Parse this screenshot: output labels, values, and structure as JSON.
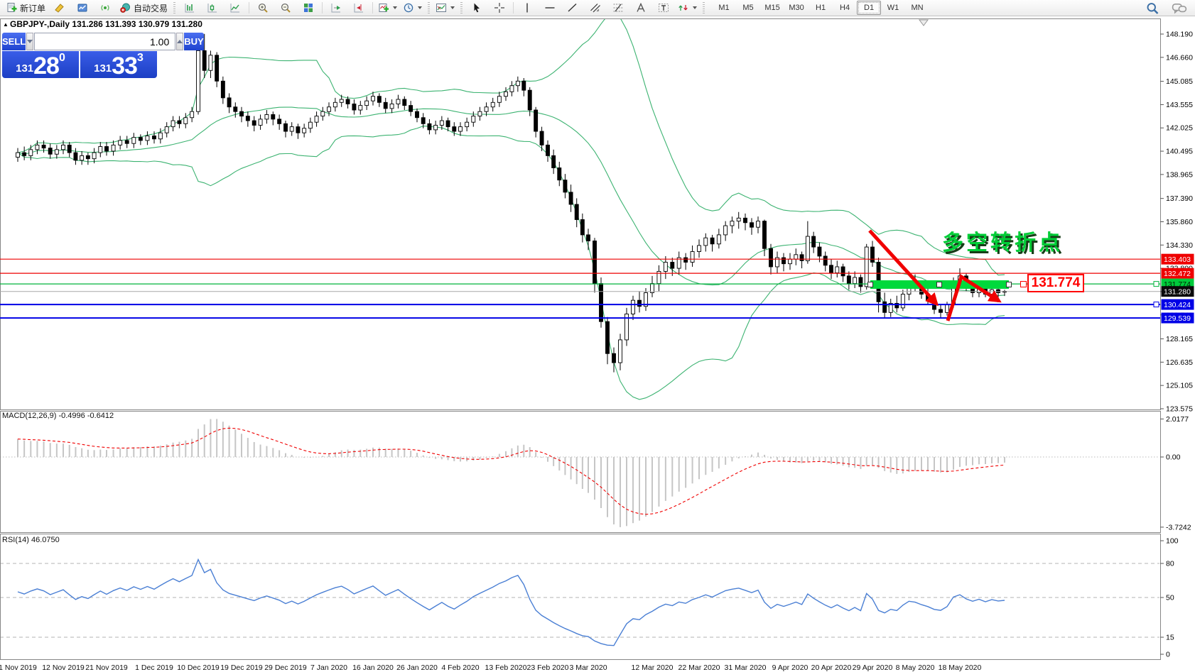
{
  "toolbar": {
    "new_order_label": "新订单",
    "autotrading_label": "自动交易",
    "timeframes": [
      "M1",
      "M5",
      "M15",
      "M30",
      "H1",
      "H4",
      "D1",
      "W1",
      "MN"
    ],
    "active_timeframe": "D1"
  },
  "icons": {
    "new_order": "document-plus",
    "profile": "yellow-marker",
    "market_window": "blue-window",
    "signal": "signal-waves",
    "autotrading": "robot-stop",
    "bar_chart": "ohlc-bars",
    "candle_chart": "candlestick",
    "line_chart": "line",
    "zoom_in": "magnifier-plus",
    "zoom_out": "magnifier-minus",
    "tile_windows": "tiled-squares",
    "shift_end": "axis-green-arrow",
    "auto_shift": "axis-red-arrow",
    "add_indicator": "chart-plus",
    "period": "clock",
    "new_chart": "chart-frame",
    "cursor": "arrow-pointer",
    "crosshair": "crosshair",
    "vline": "vertical-line",
    "hline": "horizontal-line",
    "trendline": "diagonal-line",
    "channel": "equidistant-channel",
    "fibonacci": "fibo-retracement",
    "text": "letter-A",
    "text_label": "label-T",
    "arrows_tool": "arrow-objects",
    "search": "magnifier",
    "chat": "speech-bubbles",
    "collapse": "black-triangle-up"
  },
  "chart": {
    "symbol_title": "GBPJPY-,Daily",
    "ohlc_text": "131.286 131.393 130.979 131.280"
  },
  "one_click": {
    "sell_label": "SELL",
    "buy_label": "BUY",
    "volume": "1.00",
    "sell_price": {
      "base": "131",
      "big": "28",
      "sup": "0"
    },
    "buy_price": {
      "base": "131",
      "big": "33",
      "sup": "3"
    }
  },
  "annotations": {
    "turning_point_text": "多空转折点",
    "level_box_label": "131.774"
  },
  "panes": {
    "macd_label": "MACD(12,26,9) -0.4996 -0.6412",
    "rsi_label": "RSI(14) 46.0750"
  },
  "axis": {
    "price_ticks": [
      "148.190",
      "146.660",
      "145.085",
      "143.555",
      "142.025",
      "140.495",
      "138.965",
      "137.390",
      "135.860",
      "134.330",
      "132.800",
      "131.270",
      "129.740",
      "128.165",
      "126.635",
      "125.105",
      "123.575"
    ],
    "badges": [
      {
        "label": "133.403",
        "bg": "#ee0000",
        "fg": "#ffffff"
      },
      {
        "label": "132.472",
        "bg": "#ee0000",
        "fg": "#ffffff"
      },
      {
        "label": "131.774",
        "bg": "#00cb3c",
        "fg": "#002200"
      },
      {
        "label": "131.280",
        "bg": "#0a0a0a",
        "fg": "#ffffff"
      },
      {
        "label": "130.424",
        "bg": "#0000e6",
        "fg": "#ffffff"
      },
      {
        "label": "129.539",
        "bg": "#0000e6",
        "fg": "#ffffff"
      }
    ],
    "macd_ticks": [
      "2.0177",
      "0.00",
      "-3.7242"
    ],
    "rsi_ticks": [
      "100",
      "80",
      "50",
      "15",
      "0"
    ],
    "dates": [
      "1 Nov 2019",
      "12 Nov 2019",
      "21 Nov 2019",
      "1 Dec 2019",
      "10 Dec 2019",
      "19 Dec 2019",
      "29 Dec 2019",
      "7 Jan 2020",
      "16 Jan 2020",
      "26 Jan 2020",
      "4 Feb 2020",
      "13 Feb 2020",
      "23 Feb 2020",
      "3 Mar 2020",
      "12 Mar 2020",
      "22 Mar 2020",
      "31 Mar 2020",
      "9 Apr 2020",
      "20 Apr 2020",
      "29 Apr 2020",
      "8 May 2020",
      "18 May 2020"
    ]
  },
  "chart_data": {
    "type": "candlestick",
    "symbol": "GBPJPY",
    "period": "Daily",
    "price_range": [
      123.575,
      148.19
    ],
    "ohlc": [
      [
        140.1,
        140.7,
        139.8,
        140.4
      ],
      [
        140.4,
        140.8,
        139.9,
        140.2
      ],
      [
        140.2,
        140.9,
        139.9,
        140.6
      ],
      [
        140.6,
        141.2,
        140.3,
        140.9
      ],
      [
        140.9,
        141.2,
        140.4,
        140.7
      ],
      [
        140.7,
        141.0,
        140.0,
        140.3
      ],
      [
        140.3,
        140.9,
        140.0,
        140.6
      ],
      [
        140.6,
        141.2,
        140.3,
        140.9
      ],
      [
        140.9,
        141.1,
        140.1,
        140.4
      ],
      [
        140.4,
        140.7,
        139.6,
        139.9
      ],
      [
        139.9,
        140.5,
        139.6,
        140.2
      ],
      [
        140.2,
        140.4,
        139.6,
        140.0
      ],
      [
        140.0,
        140.7,
        139.7,
        140.4
      ],
      [
        140.4,
        141.1,
        140.1,
        140.8
      ],
      [
        140.8,
        141.1,
        140.2,
        140.5
      ],
      [
        140.5,
        141.2,
        140.2,
        140.9
      ],
      [
        140.9,
        141.5,
        140.6,
        141.2
      ],
      [
        141.2,
        141.5,
        140.7,
        141.0
      ],
      [
        141.0,
        141.7,
        140.7,
        141.4
      ],
      [
        141.4,
        141.6,
        140.9,
        141.2
      ],
      [
        141.2,
        141.8,
        140.9,
        141.5
      ],
      [
        141.5,
        141.8,
        141.0,
        141.3
      ],
      [
        141.3,
        142.0,
        141.0,
        141.7
      ],
      [
        141.7,
        142.4,
        141.4,
        142.1
      ],
      [
        142.1,
        142.8,
        141.8,
        142.5
      ],
      [
        142.5,
        142.8,
        142.0,
        142.3
      ],
      [
        142.3,
        143.0,
        142.0,
        142.7
      ],
      [
        142.7,
        143.4,
        142.4,
        143.1
      ],
      [
        143.1,
        147.4,
        142.9,
        147.1
      ],
      [
        147.1,
        148.2,
        145.3,
        145.8
      ],
      [
        145.8,
        147.1,
        145.3,
        146.8
      ],
      [
        146.8,
        147.0,
        144.7,
        145.1
      ],
      [
        145.1,
        145.4,
        143.6,
        144.0
      ],
      [
        144.0,
        144.3,
        143.0,
        143.4
      ],
      [
        143.4,
        143.7,
        142.7,
        143.1
      ],
      [
        143.1,
        143.4,
        142.4,
        142.8
      ],
      [
        142.8,
        143.1,
        142.1,
        142.5
      ],
      [
        142.5,
        142.8,
        141.8,
        142.2
      ],
      [
        142.2,
        142.9,
        141.9,
        142.6
      ],
      [
        142.6,
        143.2,
        142.3,
        142.9
      ],
      [
        142.9,
        143.1,
        142.2,
        142.6
      ],
      [
        142.6,
        142.9,
        141.9,
        142.3
      ],
      [
        142.3,
        142.5,
        141.4,
        141.8
      ],
      [
        141.8,
        142.4,
        141.5,
        142.1
      ],
      [
        142.1,
        142.3,
        141.3,
        141.7
      ],
      [
        141.7,
        142.3,
        141.4,
        142.0
      ],
      [
        142.0,
        142.7,
        141.7,
        142.4
      ],
      [
        142.4,
        143.1,
        142.1,
        142.8
      ],
      [
        142.8,
        143.4,
        142.5,
        143.1
      ],
      [
        143.1,
        143.7,
        142.8,
        143.4
      ],
      [
        143.4,
        144.0,
        143.1,
        143.7
      ],
      [
        143.7,
        144.2,
        143.4,
        143.9
      ],
      [
        143.9,
        144.1,
        143.3,
        143.6
      ],
      [
        143.6,
        143.9,
        142.9,
        143.2
      ],
      [
        143.2,
        143.8,
        142.9,
        143.5
      ],
      [
        143.5,
        144.1,
        143.2,
        143.8
      ],
      [
        143.8,
        144.4,
        143.5,
        144.1
      ],
      [
        144.1,
        144.3,
        143.4,
        143.7
      ],
      [
        143.7,
        144.0,
        143.0,
        143.3
      ],
      [
        143.3,
        143.9,
        143.0,
        143.6
      ],
      [
        143.6,
        144.2,
        143.3,
        143.9
      ],
      [
        143.9,
        144.1,
        143.2,
        143.5
      ],
      [
        143.5,
        143.8,
        142.8,
        143.1
      ],
      [
        143.1,
        143.3,
        142.4,
        142.7
      ],
      [
        142.7,
        143.0,
        142.0,
        142.3
      ],
      [
        142.3,
        142.6,
        141.6,
        141.9
      ],
      [
        141.9,
        142.5,
        141.6,
        142.2
      ],
      [
        142.2,
        142.8,
        141.9,
        142.5
      ],
      [
        142.5,
        142.7,
        141.8,
        142.1
      ],
      [
        142.1,
        142.4,
        141.5,
        141.8
      ],
      [
        141.8,
        142.4,
        141.5,
        142.1
      ],
      [
        142.1,
        142.7,
        141.8,
        142.4
      ],
      [
        142.4,
        143.1,
        142.1,
        142.8
      ],
      [
        142.8,
        143.4,
        142.5,
        143.1
      ],
      [
        143.1,
        143.7,
        142.8,
        143.4
      ],
      [
        143.4,
        144.0,
        143.1,
        143.7
      ],
      [
        143.7,
        144.4,
        143.4,
        144.1
      ],
      [
        144.1,
        144.7,
        143.8,
        144.4
      ],
      [
        144.4,
        145.1,
        144.1,
        144.8
      ],
      [
        144.8,
        145.4,
        144.4,
        145.1
      ],
      [
        145.1,
        145.3,
        144.1,
        144.5
      ],
      [
        144.5,
        144.7,
        142.8,
        143.2
      ],
      [
        143.2,
        143.4,
        141.4,
        141.8
      ],
      [
        141.8,
        142.1,
        140.5,
        140.9
      ],
      [
        140.9,
        141.2,
        139.8,
        140.2
      ],
      [
        140.2,
        140.6,
        139.0,
        139.4
      ],
      [
        139.4,
        139.8,
        138.2,
        138.6
      ],
      [
        138.6,
        139.0,
        137.4,
        137.8
      ],
      [
        137.8,
        138.3,
        136.5,
        137.0
      ],
      [
        137.0,
        137.4,
        135.5,
        136.0
      ],
      [
        136.0,
        136.4,
        134.5,
        135.0
      ],
      [
        135.0,
        135.4,
        134.0,
        134.6
      ],
      [
        134.6,
        134.8,
        131.2,
        131.8
      ],
      [
        131.8,
        132.2,
        128.9,
        129.3
      ],
      [
        129.3,
        129.6,
        126.5,
        127.2
      ],
      [
        127.2,
        127.6,
        125.97,
        126.6
      ],
      [
        126.6,
        128.5,
        126.1,
        128.1
      ],
      [
        128.1,
        130.2,
        127.7,
        129.8
      ],
      [
        129.8,
        131.0,
        129.4,
        130.7
      ],
      [
        130.7,
        131.3,
        129.9,
        130.3
      ],
      [
        130.3,
        131.5,
        130.0,
        131.2
      ],
      [
        131.2,
        132.3,
        130.9,
        131.8
      ],
      [
        131.8,
        133.0,
        131.3,
        132.6
      ],
      [
        132.6,
        133.6,
        132.1,
        133.2
      ],
      [
        133.2,
        133.5,
        132.3,
        132.8
      ],
      [
        132.8,
        133.9,
        132.4,
        133.5
      ],
      [
        133.5,
        133.8,
        132.7,
        133.2
      ],
      [
        133.2,
        134.3,
        132.9,
        133.9
      ],
      [
        133.9,
        134.7,
        133.5,
        134.3
      ],
      [
        134.3,
        135.1,
        133.9,
        134.8
      ],
      [
        134.8,
        135.0,
        133.9,
        134.4
      ],
      [
        134.4,
        135.4,
        134.1,
        135.0
      ],
      [
        135.0,
        135.9,
        134.6,
        135.6
      ],
      [
        135.6,
        136.2,
        135.1,
        135.9
      ],
      [
        135.9,
        136.5,
        135.4,
        136.1
      ],
      [
        136.1,
        136.4,
        135.3,
        135.8
      ],
      [
        135.8,
        136.1,
        135.0,
        135.5
      ],
      [
        135.5,
        136.2,
        135.1,
        135.9
      ],
      [
        135.9,
        136.0,
        133.6,
        134.1
      ],
      [
        134.1,
        134.4,
        132.4,
        132.9
      ],
      [
        132.9,
        133.9,
        132.5,
        133.5
      ],
      [
        133.5,
        133.8,
        132.6,
        133.1
      ],
      [
        133.1,
        133.8,
        132.7,
        133.4
      ],
      [
        133.4,
        134.1,
        133.0,
        133.7
      ],
      [
        133.7,
        133.9,
        132.8,
        133.3
      ],
      [
        133.3,
        135.9,
        133.1,
        134.9
      ],
      [
        134.9,
        135.2,
        133.8,
        134.2
      ],
      [
        134.2,
        134.5,
        133.2,
        133.6
      ],
      [
        133.6,
        133.9,
        132.6,
        133.0
      ],
      [
        133.0,
        133.4,
        132.1,
        132.5
      ],
      [
        132.5,
        133.3,
        132.2,
        132.9
      ],
      [
        132.9,
        133.1,
        131.9,
        132.3
      ],
      [
        132.3,
        132.6,
        131.4,
        131.8
      ],
      [
        131.8,
        132.6,
        131.5,
        132.2
      ],
      [
        132.2,
        132.4,
        131.2,
        131.6
      ],
      [
        131.6,
        134.4,
        131.4,
        134.2
      ],
      [
        134.2,
        134.6,
        132.9,
        133.2
      ],
      [
        133.2,
        133.5,
        129.9,
        130.6
      ],
      [
        130.6,
        131.2,
        129.55,
        129.9
      ],
      [
        129.9,
        130.8,
        129.6,
        130.5
      ],
      [
        130.5,
        131.0,
        129.9,
        130.2
      ],
      [
        130.2,
        131.4,
        130.0,
        131.1
      ],
      [
        131.1,
        132.0,
        130.7,
        131.8
      ],
      [
        131.8,
        132.4,
        131.3,
        131.6
      ],
      [
        131.6,
        131.9,
        130.8,
        131.1
      ],
      [
        131.1,
        131.5,
        130.4,
        130.7
      ],
      [
        130.7,
        131.0,
        129.8,
        130.1
      ],
      [
        130.1,
        130.4,
        129.55,
        129.9
      ],
      [
        129.9,
        130.6,
        129.7,
        130.4
      ],
      [
        130.4,
        132.2,
        130.2,
        131.9
      ],
      [
        131.9,
        132.8,
        131.5,
        132.3
      ],
      [
        132.3,
        132.5,
        131.3,
        131.6
      ],
      [
        131.6,
        131.9,
        130.9,
        131.2
      ],
      [
        131.2,
        131.7,
        130.9,
        131.5
      ],
      [
        131.5,
        131.8,
        130.9,
        131.1
      ],
      [
        131.1,
        131.6,
        130.9,
        131.4
      ],
      [
        131.4,
        131.6,
        130.9,
        131.2
      ],
      [
        131.29,
        131.39,
        130.98,
        131.28
      ]
    ],
    "indicators": {
      "bollinger": {
        "period": 20,
        "deviation": 2,
        "color": "#3cb371"
      },
      "macd": {
        "fast": 12,
        "slow": 26,
        "signal": 9,
        "current": -0.4996,
        "signal_current": -0.6412,
        "axis_range": [
          -3.7242,
          2.0177
        ]
      },
      "rsi": {
        "period": 14,
        "current": 46.075,
        "levels": [
          15,
          50,
          80
        ],
        "axis_range": [
          0,
          100
        ],
        "color": "#4a7fd4"
      }
    },
    "hlines": [
      {
        "price": 133.403,
        "color": "#ee0000",
        "width": 1.2
      },
      {
        "price": 132.472,
        "color": "#ee0000",
        "width": 1.2
      },
      {
        "price": 131.774,
        "color": "#00b43c",
        "width": 1.2
      },
      {
        "price": 131.28,
        "color": "#a8a8a8",
        "width": 1
      },
      {
        "price": 130.424,
        "color": "#0000e6",
        "width": 2
      },
      {
        "price": 129.539,
        "color": "#0000e6",
        "width": 2
      }
    ]
  }
}
